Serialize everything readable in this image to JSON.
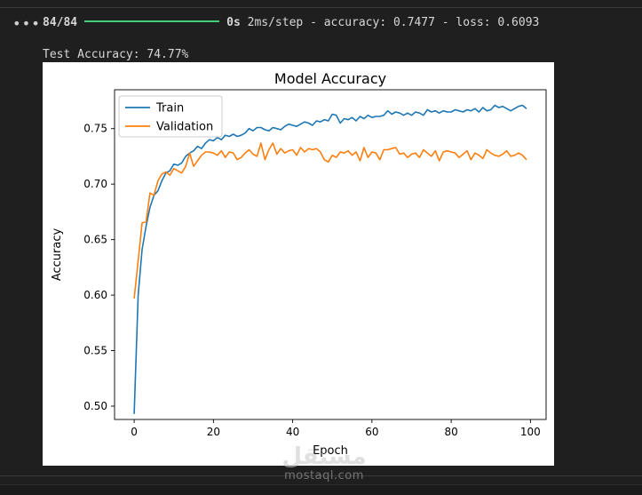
{
  "output": {
    "menu_icon": "ellipsis-icon",
    "progress": {
      "steps": "84/84",
      "fraction": 1.0,
      "time": "0s",
      "metrics": "2ms/step - accuracy: 0.7477 - loss: 0.6093"
    },
    "test_accuracy_line": "Test Accuracy: 74.77%"
  },
  "watermark": {
    "logo": "مستقل",
    "site": "mostaql.com"
  },
  "colors": {
    "train": "#1f77b4",
    "validation": "#ff7f0e",
    "progress_bar": "#3fd17a"
  },
  "chart_data": {
    "type": "line",
    "title": "Model Accuracy",
    "xlabel": "Epoch",
    "ylabel": "Accuracy",
    "xlim": [
      -4.95,
      103.95
    ],
    "ylim": [
      0.488,
      0.785
    ],
    "xticks": [
      0,
      20,
      40,
      60,
      80,
      100
    ],
    "yticks": [
      0.5,
      0.55,
      0.6,
      0.65,
      0.7,
      0.75
    ],
    "legend_position": "upper-left",
    "grid": false,
    "series": [
      {
        "name": "Train",
        "color": "#1f77b4",
        "x": [
          0,
          1,
          2,
          3,
          4,
          5,
          6,
          7,
          8,
          9,
          10,
          11,
          12,
          13,
          14,
          15,
          16,
          17,
          18,
          19,
          20,
          21,
          22,
          23,
          24,
          25,
          26,
          27,
          28,
          29,
          30,
          31,
          32,
          33,
          34,
          35,
          36,
          37,
          38,
          39,
          40,
          41,
          42,
          43,
          44,
          45,
          46,
          47,
          48,
          49,
          50,
          51,
          52,
          53,
          54,
          55,
          56,
          57,
          58,
          59,
          60,
          61,
          62,
          63,
          64,
          65,
          66,
          67,
          68,
          69,
          70,
          71,
          72,
          73,
          74,
          75,
          76,
          77,
          78,
          79,
          80,
          81,
          82,
          83,
          84,
          85,
          86,
          87,
          88,
          89,
          90,
          91,
          92,
          93,
          94,
          95,
          96,
          97,
          98,
          99
        ],
        "values": [
          0.493,
          0.6,
          0.641,
          0.662,
          0.679,
          0.69,
          0.694,
          0.703,
          0.71,
          0.712,
          0.718,
          0.717,
          0.719,
          0.725,
          0.728,
          0.73,
          0.734,
          0.732,
          0.737,
          0.74,
          0.739,
          0.742,
          0.74,
          0.744,
          0.743,
          0.745,
          0.743,
          0.744,
          0.746,
          0.75,
          0.748,
          0.751,
          0.751,
          0.749,
          0.748,
          0.751,
          0.75,
          0.749,
          0.752,
          0.754,
          0.753,
          0.752,
          0.754,
          0.756,
          0.755,
          0.753,
          0.757,
          0.756,
          0.758,
          0.757,
          0.763,
          0.762,
          0.755,
          0.759,
          0.758,
          0.76,
          0.757,
          0.761,
          0.759,
          0.762,
          0.76,
          0.761,
          0.761,
          0.762,
          0.766,
          0.763,
          0.765,
          0.764,
          0.762,
          0.764,
          0.762,
          0.765,
          0.764,
          0.762,
          0.767,
          0.765,
          0.766,
          0.764,
          0.766,
          0.765,
          0.765,
          0.767,
          0.766,
          0.765,
          0.767,
          0.766,
          0.768,
          0.765,
          0.769,
          0.766,
          0.767,
          0.771,
          0.769,
          0.77,
          0.768,
          0.766,
          0.768,
          0.77,
          0.771,
          0.768
        ]
      },
      {
        "name": "Validation",
        "color": "#ff7f0e",
        "x": [
          0,
          1,
          2,
          3,
          4,
          5,
          6,
          7,
          8,
          9,
          10,
          11,
          12,
          13,
          14,
          15,
          16,
          17,
          18,
          19,
          20,
          21,
          22,
          23,
          24,
          25,
          26,
          27,
          28,
          29,
          30,
          31,
          32,
          33,
          34,
          35,
          36,
          37,
          38,
          39,
          40,
          41,
          42,
          43,
          44,
          45,
          46,
          47,
          48,
          49,
          50,
          51,
          52,
          53,
          54,
          55,
          56,
          57,
          58,
          59,
          60,
          61,
          62,
          63,
          64,
          65,
          66,
          67,
          68,
          69,
          70,
          71,
          72,
          73,
          74,
          75,
          76,
          77,
          78,
          79,
          80,
          81,
          82,
          83,
          84,
          85,
          86,
          87,
          88,
          89,
          90,
          91,
          92,
          93,
          94,
          95,
          96,
          97,
          98,
          99
        ],
        "values": [
          0.597,
          0.631,
          0.665,
          0.666,
          0.692,
          0.69,
          0.703,
          0.709,
          0.711,
          0.708,
          0.714,
          0.712,
          0.71,
          0.716,
          0.728,
          0.716,
          0.721,
          0.726,
          0.729,
          0.729,
          0.728,
          0.726,
          0.73,
          0.724,
          0.729,
          0.728,
          0.722,
          0.724,
          0.728,
          0.731,
          0.727,
          0.725,
          0.737,
          0.722,
          0.731,
          0.737,
          0.727,
          0.732,
          0.728,
          0.73,
          0.731,
          0.726,
          0.733,
          0.729,
          0.732,
          0.731,
          0.732,
          0.729,
          0.722,
          0.72,
          0.726,
          0.724,
          0.729,
          0.728,
          0.73,
          0.726,
          0.729,
          0.721,
          0.733,
          0.724,
          0.729,
          0.728,
          0.722,
          0.731,
          0.731,
          0.732,
          0.733,
          0.727,
          0.728,
          0.724,
          0.727,
          0.728,
          0.724,
          0.731,
          0.728,
          0.725,
          0.73,
          0.721,
          0.729,
          0.73,
          0.729,
          0.728,
          0.724,
          0.727,
          0.73,
          0.722,
          0.728,
          0.726,
          0.723,
          0.731,
          0.728,
          0.726,
          0.725,
          0.727,
          0.73,
          0.725,
          0.726,
          0.728,
          0.726,
          0.722
        ]
      }
    ]
  }
}
